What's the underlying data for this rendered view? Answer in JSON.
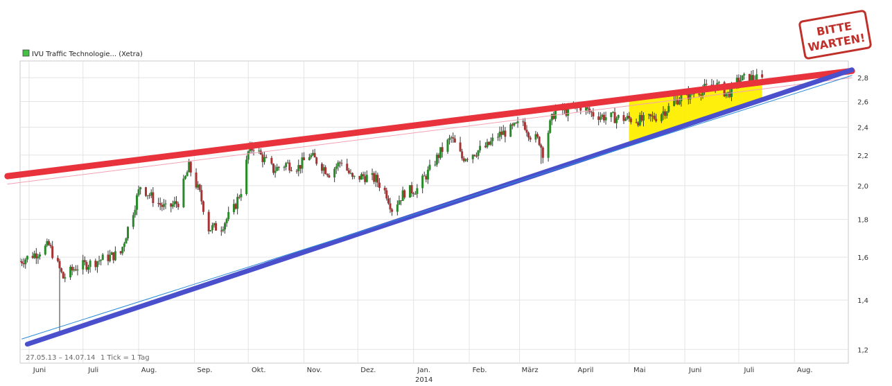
{
  "chart_data": {
    "type": "candlestick",
    "legend": {
      "label": "IVU Traffic Technologie... (Xetra)",
      "color": "#44c044"
    },
    "footer": {
      "range": "27.05.13 – 14.07.14",
      "tick": "1 Tick = 1 Tag"
    },
    "stamp": {
      "line1": "BITTE",
      "line2": "WARTEN!"
    },
    "x_axis": {
      "start": "2013-05-27",
      "end": "2014-08-31",
      "months": [
        {
          "label": "Juni",
          "date": "2013-06-01"
        },
        {
          "label": "Juli",
          "date": "2013-07-01"
        },
        {
          "label": "Aug.",
          "date": "2013-08-01"
        },
        {
          "label": "Sep.",
          "date": "2013-09-01"
        },
        {
          "label": "Okt.",
          "date": "2013-10-01"
        },
        {
          "label": "Nov.",
          "date": "2013-11-01"
        },
        {
          "label": "Dez.",
          "date": "2013-12-01"
        },
        {
          "label": "Jan.",
          "date": "2014-01-01"
        },
        {
          "label": "Feb.",
          "date": "2014-02-01"
        },
        {
          "label": "März",
          "date": "2014-03-01"
        },
        {
          "label": "April",
          "date": "2014-04-01"
        },
        {
          "label": "Mai",
          "date": "2014-05-01"
        },
        {
          "label": "Juni",
          "date": "2014-06-01"
        },
        {
          "label": "Juli",
          "date": "2014-07-01"
        },
        {
          "label": "Aug.",
          "date": "2014-08-01"
        }
      ],
      "year_label": {
        "text": "2014",
        "date": "2014-01-01"
      }
    },
    "y_axis": {
      "scale": "log",
      "range": [
        1.15,
        2.95
      ],
      "ticks": [
        1.2,
        1.4,
        1.6,
        1.8,
        2.0,
        2.2,
        2.4,
        2.6,
        2.8
      ],
      "tick_labels": [
        "1,2",
        "1,4",
        "1,6",
        "1,8",
        "2,0",
        "2,2",
        "2,4",
        "2,6",
        "2,8"
      ]
    },
    "grid": true,
    "colors": {
      "up": "#2a8a2a",
      "down": "#a83232",
      "wick": "#333333"
    },
    "price_path": [
      [
        "2013-05-27",
        1.58
      ],
      [
        "2013-06-05",
        1.62
      ],
      [
        "2013-06-12",
        1.66
      ],
      [
        "2013-06-17",
        1.56
      ],
      [
        "2013-06-20",
        1.5
      ],
      [
        "2013-06-27",
        1.55
      ],
      [
        "2013-07-05",
        1.57
      ],
      [
        "2013-07-15",
        1.6
      ],
      [
        "2013-07-22",
        1.62
      ],
      [
        "2013-07-29",
        1.85
      ],
      [
        "2013-08-02",
        2.0
      ],
      [
        "2013-08-09",
        1.92
      ],
      [
        "2013-08-16",
        1.86
      ],
      [
        "2013-08-23",
        1.9
      ],
      [
        "2013-08-29",
        2.12
      ],
      [
        "2013-09-04",
        1.95
      ],
      [
        "2013-09-09",
        1.75
      ],
      [
        "2013-09-16",
        1.76
      ],
      [
        "2013-09-23",
        1.86
      ],
      [
        "2013-09-28",
        2.0
      ],
      [
        "2013-10-01",
        2.22
      ],
      [
        "2013-10-04",
        2.26
      ],
      [
        "2013-10-09",
        2.18
      ],
      [
        "2013-10-15",
        2.1
      ],
      [
        "2013-10-22",
        2.14
      ],
      [
        "2013-10-29",
        2.12
      ],
      [
        "2013-11-04",
        2.2
      ],
      [
        "2013-11-10",
        2.14
      ],
      [
        "2013-11-15",
        2.08
      ],
      [
        "2013-11-22",
        2.16
      ],
      [
        "2013-11-28",
        2.04
      ],
      [
        "2013-12-04",
        2.06
      ],
      [
        "2013-12-11",
        2.04
      ],
      [
        "2013-12-17",
        1.95
      ],
      [
        "2013-12-20",
        1.86
      ],
      [
        "2013-12-27",
        1.96
      ],
      [
        "2014-01-03",
        1.98
      ],
      [
        "2014-01-10",
        2.1
      ],
      [
        "2014-01-16",
        2.22
      ],
      [
        "2014-01-22",
        2.32
      ],
      [
        "2014-01-28",
        2.18
      ],
      [
        "2014-02-04",
        2.22
      ],
      [
        "2014-02-11",
        2.26
      ],
      [
        "2014-02-17",
        2.34
      ],
      [
        "2014-02-24",
        2.38
      ],
      [
        "2014-03-03",
        2.44
      ],
      [
        "2014-03-07",
        2.34
      ],
      [
        "2014-03-12",
        2.3
      ],
      [
        "2014-03-14",
        2.22
      ],
      [
        "2014-03-18",
        2.42
      ],
      [
        "2014-03-21",
        2.54
      ],
      [
        "2014-03-28",
        2.52
      ],
      [
        "2014-04-04",
        2.56
      ],
      [
        "2014-04-11",
        2.5
      ],
      [
        "2014-04-17",
        2.48
      ],
      [
        "2014-04-25",
        2.47
      ],
      [
        "2014-05-02",
        2.46
      ],
      [
        "2014-05-09",
        2.45
      ],
      [
        "2014-05-16",
        2.48
      ],
      [
        "2014-05-23",
        2.55
      ],
      [
        "2014-05-28",
        2.62
      ],
      [
        "2014-06-04",
        2.66
      ],
      [
        "2014-06-11",
        2.7
      ],
      [
        "2014-06-18",
        2.74
      ],
      [
        "2014-06-25",
        2.66
      ],
      [
        "2014-07-01",
        2.78
      ],
      [
        "2014-07-07",
        2.8
      ],
      [
        "2014-07-14",
        2.78
      ]
    ],
    "overlays": [
      {
        "name": "",
        "kind": "line",
        "from": [
          "2013-05-20",
          2.06
        ],
        "to": [
          "2014-09-02",
          2.86
        ],
        "color": "#e8323c",
        "width": 9
      },
      {
        "name": "",
        "kind": "line",
        "from": [
          "2013-05-20",
          2.01
        ],
        "to": [
          "2014-09-02",
          2.8
        ],
        "color": "#f4a0b4",
        "width": 1
      },
      {
        "name": "",
        "kind": "line",
        "from": [
          "2013-05-31",
          1.22
        ],
        "to": [
          "2014-09-02",
          2.87
        ],
        "color": "#4a50cc",
        "width": 7
      },
      {
        "name": "",
        "kind": "line",
        "from": [
          "2013-05-28",
          1.24
        ],
        "to": [
          "2014-09-02",
          2.82
        ],
        "color": "#2a8ad8",
        "width": 1
      }
    ],
    "highlight": {
      "from": "2014-05-01",
      "to": "2014-07-14",
      "color": "#ffee00"
    }
  }
}
